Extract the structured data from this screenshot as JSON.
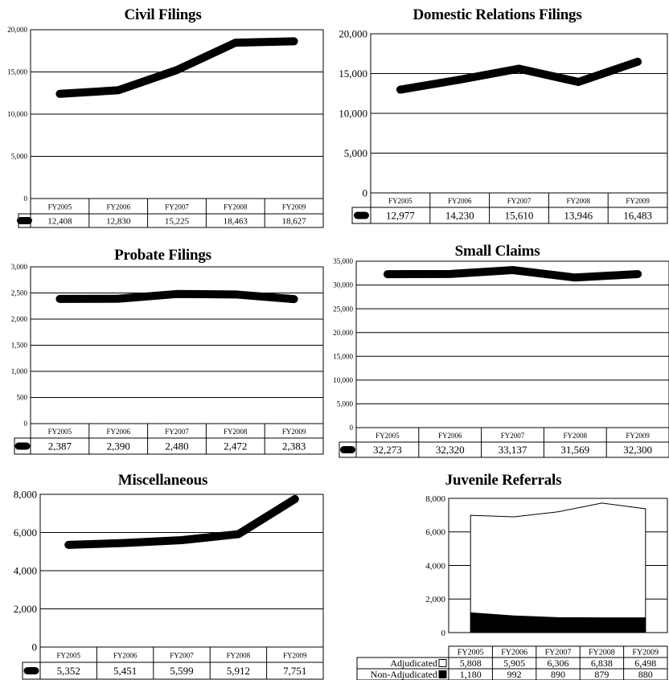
{
  "charts": [
    {
      "type": "line",
      "title": "Civil Filings",
      "categories": [
        "FY2005",
        "FY2006",
        "FY2007",
        "FY2008",
        "FY2009"
      ],
      "values": [
        12408,
        12830,
        15225,
        18463,
        18627
      ],
      "value_labels": [
        "12,408",
        "12,830",
        "15,225",
        "18,463",
        "18,627"
      ],
      "y_ticks": [
        "0",
        "5,000",
        "10,000",
        "15,000",
        "20,000"
      ],
      "ylim": [
        0,
        20000
      ]
    },
    {
      "type": "line",
      "title": "Domestic Relations Filings",
      "categories": [
        "FY2005",
        "FY2006",
        "FY2007",
        "FY2008",
        "FY2009"
      ],
      "values": [
        12977,
        14230,
        15610,
        13946,
        16483
      ],
      "value_labels": [
        "12,977",
        "14,230",
        "15,610",
        "13,946",
        "16,483"
      ],
      "y_ticks": [
        "0",
        "5,000",
        "10,000",
        "15,000",
        "20,000"
      ],
      "ylim": [
        0,
        20000
      ]
    },
    {
      "type": "line",
      "title": "Probate Filings",
      "categories": [
        "FY2005",
        "FY2006",
        "FY2007",
        "FY2008",
        "FY2009"
      ],
      "values": [
        2387,
        2390,
        2480,
        2472,
        2383
      ],
      "value_labels": [
        "2,387",
        "2,390",
        "2,480",
        "2,472",
        "2,383"
      ],
      "y_ticks": [
        "0",
        "500",
        "1,000",
        "1,500",
        "2,000",
        "2,500",
        "3,000"
      ],
      "ylim": [
        0,
        3000
      ]
    },
    {
      "type": "line",
      "title": "Small Claims",
      "categories": [
        "FY2005",
        "FY2006",
        "FY2007",
        "FY2008",
        "FY2009"
      ],
      "values": [
        32273,
        32320,
        33137,
        31569,
        32300
      ],
      "value_labels": [
        "32,273",
        "32,320",
        "33,137",
        "31,569",
        "32,300"
      ],
      "y_ticks": [
        "0",
        "5,000",
        "10,000",
        "15,000",
        "20,000",
        "25,000",
        "30,000",
        "35,000"
      ],
      "ylim": [
        0,
        35000
      ]
    },
    {
      "type": "line",
      "title": "Miscellaneous",
      "categories": [
        "FY2005",
        "FY2006",
        "FY2007",
        "FY2008",
        "FY2009"
      ],
      "values": [
        5352,
        5451,
        5599,
        5912,
        7751
      ],
      "value_labels": [
        "5,352",
        "5,451",
        "5,599",
        "5,912",
        "7,751"
      ],
      "y_ticks": [
        "0",
        "2,000",
        "4,000",
        "6,000",
        "8,000"
      ],
      "ylim": [
        0,
        8000
      ]
    },
    {
      "type": "area",
      "title": "Juvenile Referrals",
      "categories": [
        "FY2005",
        "FY2006",
        "FY2007",
        "FY2008",
        "FY2009"
      ],
      "series": [
        {
          "name": "Adjudicated",
          "values": [
            5808,
            5905,
            6306,
            6838,
            6498
          ],
          "labels": [
            "5,808",
            "5,905",
            "6,306",
            "6,838",
            "6,498"
          ],
          "color": "#ffffff"
        },
        {
          "name": "Non-Adjudicated",
          "values": [
            1180,
            992,
            890,
            879,
            880
          ],
          "labels": [
            "1,180",
            "992",
            "890",
            "879",
            "880"
          ],
          "color": "#000000"
        }
      ],
      "row_labels": [
        "Adjudicated",
        "Non-Adjudicated"
      ],
      "y_ticks": [
        "0",
        "2,000",
        "4,000",
        "6,000",
        "8,000"
      ],
      "ylim": [
        0,
        8000
      ],
      "stacked": true
    }
  ]
}
